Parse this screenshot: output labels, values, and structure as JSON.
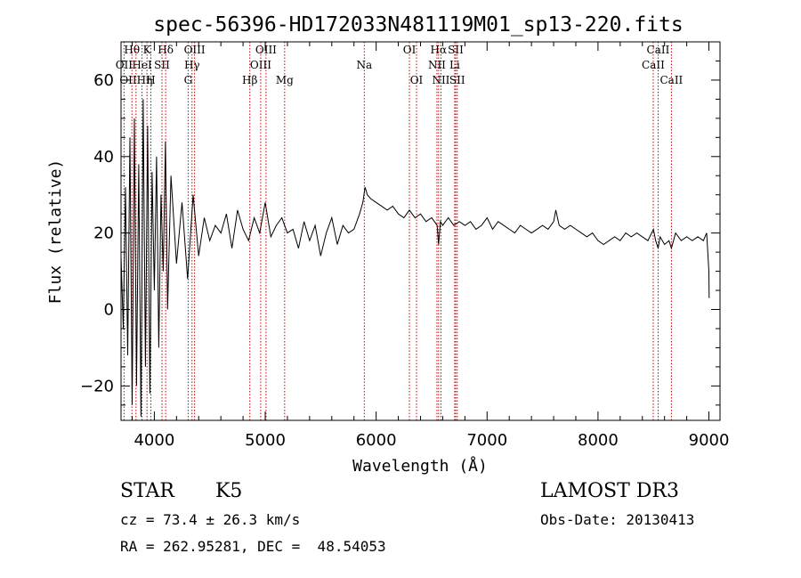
{
  "chart_data": {
    "type": "line",
    "title": "spec-56396-HD172033N481119M01_sp13-220.fits",
    "xlabel": "Wavelength (Å)",
    "ylabel": "Flux (relative)",
    "xlim": [
      3700,
      9100
    ],
    "ylim": [
      -29,
      70
    ],
    "x_ticks": [
      4000,
      5000,
      6000,
      7000,
      8000,
      9000
    ],
    "x_tick_labels": [
      "4000",
      "5000",
      "6000",
      "7000",
      "8000",
      "9000"
    ],
    "y_ticks": [
      -20,
      0,
      20,
      40,
      60
    ],
    "y_tick_labels": [
      "−20",
      "0",
      "20",
      "40",
      "60"
    ],
    "series": [
      {
        "name": "flux",
        "x": [
          3700,
          3720,
          3740,
          3760,
          3780,
          3800,
          3820,
          3840,
          3860,
          3880,
          3900,
          3920,
          3940,
          3960,
          3980,
          4000,
          4020,
          4040,
          4060,
          4080,
          4100,
          4120,
          4150,
          4200,
          4250,
          4300,
          4350,
          4400,
          4450,
          4500,
          4550,
          4600,
          4650,
          4700,
          4750,
          4800,
          4850,
          4900,
          4950,
          5000,
          5050,
          5100,
          5150,
          5200,
          5250,
          5300,
          5350,
          5400,
          5450,
          5500,
          5550,
          5600,
          5650,
          5700,
          5750,
          5800,
          5850,
          5880,
          5900,
          5920,
          5950,
          6000,
          6050,
          6100,
          6150,
          6200,
          6250,
          6300,
          6350,
          6400,
          6450,
          6500,
          6550,
          6563,
          6580,
          6600,
          6650,
          6700,
          6750,
          6800,
          6850,
          6900,
          6950,
          7000,
          7050,
          7100,
          7150,
          7200,
          7250,
          7300,
          7350,
          7400,
          7450,
          7500,
          7550,
          7600,
          7620,
          7650,
          7700,
          7750,
          7800,
          7850,
          7900,
          7950,
          8000,
          8050,
          8100,
          8150,
          8200,
          8250,
          8300,
          8350,
          8400,
          8450,
          8500,
          8520,
          8542,
          8560,
          8600,
          8640,
          8662,
          8700,
          8750,
          8800,
          8850,
          8900,
          8950,
          8980,
          9000,
          9002
        ],
        "y": [
          14,
          -5,
          32,
          -12,
          45,
          -25,
          50,
          -20,
          38,
          -28,
          55,
          -15,
          48,
          -22,
          36,
          5,
          40,
          -10,
          30,
          10,
          44,
          0,
          35,
          12,
          28,
          8,
          30,
          14,
          24,
          18,
          22,
          20,
          25,
          16,
          26,
          21,
          18,
          24,
          20,
          28,
          19,
          22,
          24,
          20,
          21,
          16,
          23,
          18,
          22,
          14,
          20,
          24,
          17,
          22,
          20,
          21,
          25,
          28,
          32,
          30,
          29,
          28,
          27,
          26,
          27,
          25,
          24,
          26,
          24,
          25,
          23,
          24,
          22,
          17,
          23,
          22,
          24,
          22,
          23,
          22,
          23,
          21,
          22,
          24,
          21,
          23,
          22,
          21,
          20,
          22,
          21,
          20,
          21,
          22,
          21,
          23,
          26,
          22,
          21,
          22,
          21,
          20,
          19,
          20,
          18,
          17,
          18,
          19,
          18,
          20,
          19,
          20,
          19,
          18,
          21,
          18,
          16,
          19,
          17,
          18,
          16,
          20,
          18,
          19,
          18,
          19,
          18,
          20,
          10,
          3
        ]
      }
    ],
    "line_labels": [
      {
        "label": "Hθ",
        "wavelength": 3798,
        "row": 1
      },
      {
        "label": "OII",
        "wavelength": 3727,
        "row": 2
      },
      {
        "label": "OIIHη",
        "wavelength": 3835,
        "row": 3
      },
      {
        "label": "K",
        "wavelength": 3934,
        "row": 1
      },
      {
        "label": "HeI",
        "wavelength": 3889,
        "row": 2
      },
      {
        "label": "H",
        "wavelength": 3969,
        "row": 3
      },
      {
        "label": "Hδ",
        "wavelength": 4102,
        "row": 1
      },
      {
        "label": "SII",
        "wavelength": 4069,
        "row": 2
      },
      {
        "label": "OIII",
        "wavelength": 4363,
        "row": 1
      },
      {
        "label": "Hγ",
        "wavelength": 4340,
        "row": 2
      },
      {
        "label": "G",
        "wavelength": 4305,
        "row": 3
      },
      {
        "label": "OIII",
        "wavelength": 5007,
        "row": 1
      },
      {
        "label": "OIII",
        "wavelength": 4959,
        "row": 2
      },
      {
        "label": "Hβ",
        "wavelength": 4861,
        "row": 3
      },
      {
        "label": "Mg",
        "wavelength": 5175,
        "row": 3
      },
      {
        "label": "Na",
        "wavelength": 5893,
        "row": 2
      },
      {
        "label": "OI",
        "wavelength": 6300,
        "row": 1
      },
      {
        "label": "OI",
        "wavelength": 6364,
        "row": 3
      },
      {
        "label": "Hα",
        "wavelength": 6563,
        "row": 1
      },
      {
        "label": "NII",
        "wavelength": 6548,
        "row": 2
      },
      {
        "label": "NII",
        "wavelength": 6584,
        "row": 3
      },
      {
        "label": "SII",
        "wavelength": 6717,
        "row": 1
      },
      {
        "label": "Li",
        "wavelength": 6708,
        "row": 2
      },
      {
        "label": "SII",
        "wavelength": 6731,
        "row": 3
      },
      {
        "label": "CaII",
        "wavelength": 8542,
        "row": 1
      },
      {
        "label": "CaII",
        "wavelength": 8498,
        "row": 2
      },
      {
        "label": "CaII",
        "wavelength": 8662,
        "row": 3
      }
    ],
    "grid": false,
    "colors": {
      "line": "#000000",
      "marker": "#cc0000",
      "axis": "#000000"
    }
  },
  "info": {
    "class": "STAR",
    "subclass": "K5",
    "survey": "LAMOST DR3",
    "cz": "cz = 73.4 ± 26.3 km/s",
    "obs_date": "Obs-Date: 20130413",
    "coords": "RA = 262.95281, DEC =  48.54053"
  }
}
